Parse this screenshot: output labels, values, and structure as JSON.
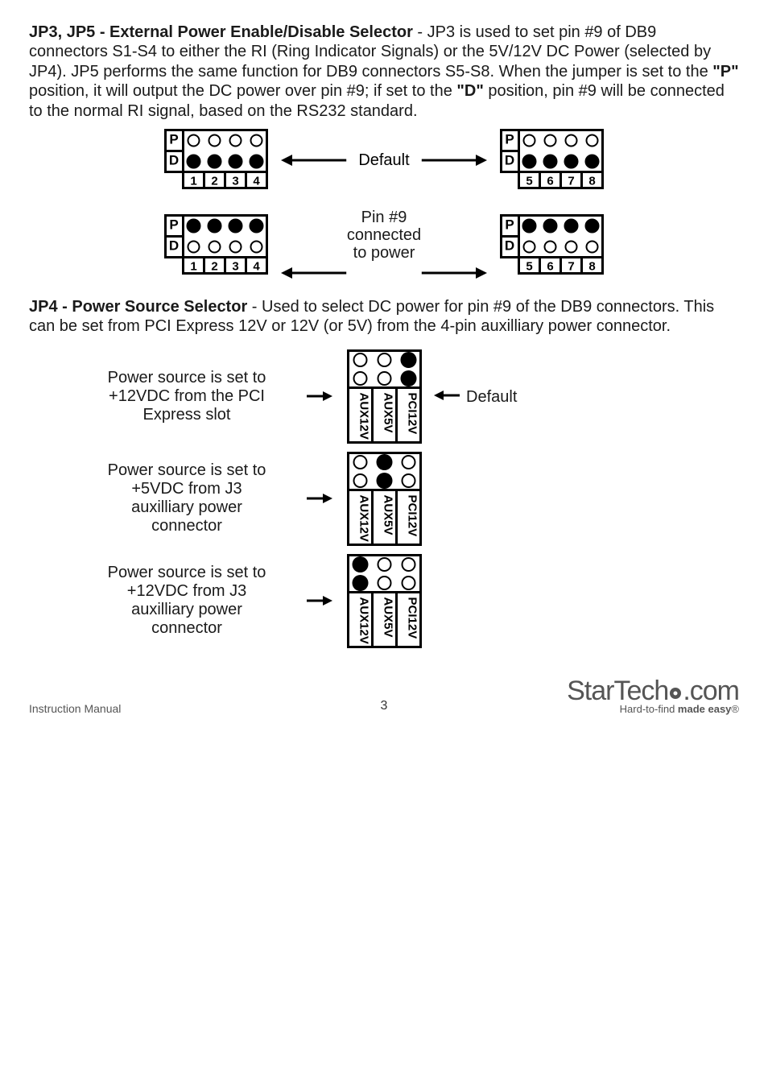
{
  "section1": {
    "heading": "JP3, JP5 - External Power Enable/Disable Selector",
    "text_part1": " - JP3 is used to set pin #9 of DB9 connectors S1-S4 to either the RI (Ring Indicator Signals) or the 5V/12V DC Power (selected by JP4). JP5 performs the same function for DB9 connectors S5-S8. When the jumper is set to the ",
    "bold_p": "\"P\"",
    "text_part2": " position, it will output the DC power over pin #9; if set to the ",
    "bold_d": "\"D\"",
    "text_part3": " position, pin #9 will be connected to the normal RI signal, based on the RS232 standard."
  },
  "diagram1": {
    "default_label": "Default",
    "pin9_label_l1": "Pin #9",
    "pin9_label_l2": "connected",
    "pin9_label_l3": "to power",
    "block_left_cols": [
      "1",
      "2",
      "3",
      "4"
    ],
    "block_right_cols": [
      "5",
      "6",
      "7",
      "8"
    ],
    "row_labels": [
      "P",
      "D"
    ]
  },
  "section2": {
    "heading": "JP4 - Power Source Selector",
    "text": " - Used to select DC power for pin #9 of the DB9 connectors. This can be set from PCI Express 12V or 12V (or 5V) from the 4-pin auxilliary power connector."
  },
  "jp4": {
    "col_labels": [
      "AUX12V",
      "AUX5V",
      "PCI12V"
    ],
    "default_label": "Default",
    "rows": [
      {
        "desc_l1": "Power source is set to",
        "desc_l2": "+12VDC from the PCI",
        "desc_l3": "Express slot",
        "filled_col": 2,
        "show_default": true
      },
      {
        "desc_l1": "Power source is set to",
        "desc_l2": "+5VDC from J3",
        "desc_l3": "auxilliary power",
        "desc_l4": "connector",
        "filled_col": 1,
        "show_default": false
      },
      {
        "desc_l1": "Power source is set to",
        "desc_l2": "+12VDC from J3",
        "desc_l3": "auxilliary power",
        "desc_l4": "connector",
        "filled_col": 0,
        "show_default": false
      }
    ]
  },
  "footer": {
    "left": "Instruction Manual",
    "page": "3",
    "logo_main": "StarTech",
    "logo_suffix": ".com",
    "tagline_prefix": "Hard-to-find ",
    "tagline_bold": "made easy",
    "reg": "®"
  },
  "style": {
    "stroke": "#000000",
    "stroke_w": 3,
    "circle_r": 7,
    "cell": 26,
    "font": "Arial"
  }
}
